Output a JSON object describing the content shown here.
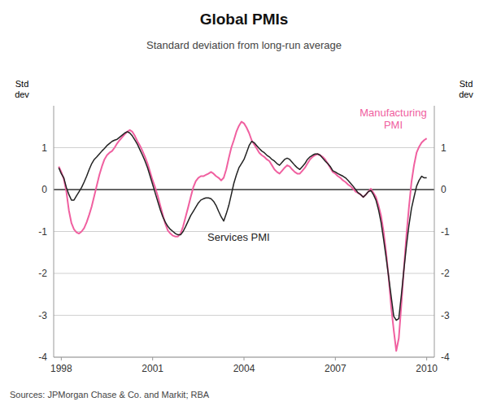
{
  "chart_data": {
    "type": "line",
    "title": "Global PMIs",
    "subtitle": "Standard deviation from long-run average",
    "ylabel": "Std\ndev",
    "y2label": "Std\ndev",
    "source": "Sources: JPMorgan Chase & Co. and Markit; RBA",
    "grid": true,
    "xlim": [
      1997.75,
      2010.25
    ],
    "xticks": [
      1998,
      2001,
      2004,
      2007,
      2010
    ],
    "ylim": [
      -4,
      2
    ],
    "yticks": [
      -4,
      -3,
      -2,
      -1,
      0,
      1
    ],
    "y2lim": [
      -4,
      2
    ],
    "y2ticks": [
      -4,
      -3,
      -2,
      -1,
      0,
      1
    ],
    "x": [
      1997.917,
      1998.0,
      1998.083,
      1998.167,
      1998.25,
      1998.333,
      1998.417,
      1998.5,
      1998.583,
      1998.667,
      1998.75,
      1998.833,
      1998.917,
      1999.0,
      1999.083,
      1999.167,
      1999.25,
      1999.333,
      1999.417,
      1999.5,
      1999.583,
      1999.667,
      1999.75,
      1999.833,
      1999.917,
      2000.0,
      2000.083,
      2000.167,
      2000.25,
      2000.333,
      2000.417,
      2000.5,
      2000.583,
      2000.667,
      2000.75,
      2000.833,
      2000.917,
      2001.0,
      2001.083,
      2001.167,
      2001.25,
      2001.333,
      2001.417,
      2001.5,
      2001.583,
      2001.667,
      2001.75,
      2001.833,
      2001.917,
      2002.0,
      2002.083,
      2002.167,
      2002.25,
      2002.333,
      2002.417,
      2002.5,
      2002.583,
      2002.667,
      2002.75,
      2002.833,
      2002.917,
      2003.0,
      2003.083,
      2003.167,
      2003.25,
      2003.333,
      2003.417,
      2003.5,
      2003.583,
      2003.667,
      2003.75,
      2003.833,
      2003.917,
      2004.0,
      2004.083,
      2004.167,
      2004.25,
      2004.333,
      2004.417,
      2004.5,
      2004.583,
      2004.667,
      2004.75,
      2004.833,
      2004.917,
      2005.0,
      2005.083,
      2005.167,
      2005.25,
      2005.333,
      2005.417,
      2005.5,
      2005.583,
      2005.667,
      2005.75,
      2005.833,
      2005.917,
      2006.0,
      2006.083,
      2006.167,
      2006.25,
      2006.333,
      2006.417,
      2006.5,
      2006.583,
      2006.667,
      2006.75,
      2006.833,
      2006.917,
      2007.0,
      2007.083,
      2007.167,
      2007.25,
      2007.333,
      2007.417,
      2007.5,
      2007.583,
      2007.667,
      2007.75,
      2007.833,
      2007.917,
      2008.0,
      2008.083,
      2008.167,
      2008.25,
      2008.333,
      2008.417,
      2008.5,
      2008.583,
      2008.667,
      2008.75,
      2008.833,
      2008.917,
      2009.0,
      2009.083,
      2009.167,
      2009.25,
      2009.333,
      2009.417,
      2009.5,
      2009.583,
      2009.667,
      2009.75,
      2009.833,
      2009.917,
      2010.0
    ],
    "series": [
      {
        "name": "Services PMI",
        "color": "#222222",
        "values": [
          0.52,
          0.38,
          0.28,
          0.05,
          -0.12,
          -0.25,
          -0.25,
          -0.15,
          -0.05,
          0.05,
          0.18,
          0.32,
          0.48,
          0.62,
          0.72,
          0.78,
          0.85,
          0.92,
          0.98,
          1.05,
          1.1,
          1.15,
          1.18,
          1.2,
          1.25,
          1.3,
          1.35,
          1.38,
          1.35,
          1.28,
          1.18,
          1.08,
          0.95,
          0.82,
          0.68,
          0.52,
          0.32,
          0.12,
          -0.08,
          -0.28,
          -0.48,
          -0.65,
          -0.78,
          -0.88,
          -0.95,
          -1.0,
          -1.05,
          -1.08,
          -1.08,
          -1.0,
          -0.88,
          -0.75,
          -0.62,
          -0.52,
          -0.42,
          -0.32,
          -0.25,
          -0.22,
          -0.2,
          -0.2,
          -0.22,
          -0.28,
          -0.38,
          -0.52,
          -0.65,
          -0.75,
          -0.58,
          -0.38,
          -0.12,
          0.15,
          0.35,
          0.52,
          0.62,
          0.72,
          0.88,
          1.05,
          1.15,
          1.12,
          1.05,
          0.98,
          0.92,
          0.88,
          0.82,
          0.78,
          0.72,
          0.68,
          0.62,
          0.58,
          0.65,
          0.72,
          0.75,
          0.72,
          0.65,
          0.58,
          0.52,
          0.48,
          0.55,
          0.62,
          0.72,
          0.78,
          0.82,
          0.85,
          0.85,
          0.82,
          0.75,
          0.68,
          0.62,
          0.55,
          0.45,
          0.42,
          0.38,
          0.35,
          0.32,
          0.28,
          0.22,
          0.15,
          0.08,
          0.0,
          -0.08,
          -0.12,
          -0.18,
          -0.12,
          -0.05,
          -0.02,
          -0.12,
          -0.25,
          -0.48,
          -0.78,
          -1.18,
          -1.62,
          -2.08,
          -2.55,
          -3.02,
          -3.12,
          -3.08,
          -2.52,
          -1.92,
          -1.35,
          -0.85,
          -0.45,
          -0.18,
          0.08,
          0.22,
          0.32,
          0.28,
          0.28
        ]
      },
      {
        "name": "Manufacturing\nPMI",
        "color": "#f060a0",
        "values": [
          0.55,
          0.42,
          0.25,
          -0.05,
          -0.5,
          -0.8,
          -0.95,
          -1.02,
          -1.05,
          -1.0,
          -0.92,
          -0.78,
          -0.6,
          -0.4,
          -0.15,
          0.1,
          0.35,
          0.55,
          0.72,
          0.82,
          0.88,
          0.92,
          1.0,
          1.1,
          1.18,
          1.25,
          1.32,
          1.38,
          1.42,
          1.38,
          1.28,
          1.15,
          1.05,
          0.92,
          0.78,
          0.62,
          0.42,
          0.22,
          0.05,
          -0.15,
          -0.38,
          -0.6,
          -0.82,
          -0.98,
          -1.05,
          -1.1,
          -1.12,
          -1.12,
          -1.05,
          -0.88,
          -0.65,
          -0.42,
          -0.18,
          0.05,
          0.2,
          0.28,
          0.32,
          0.32,
          0.35,
          0.38,
          0.42,
          0.38,
          0.32,
          0.28,
          0.22,
          0.28,
          0.48,
          0.75,
          1.0,
          1.18,
          1.38,
          1.52,
          1.62,
          1.58,
          1.48,
          1.35,
          1.18,
          1.08,
          0.98,
          0.88,
          0.82,
          0.78,
          0.72,
          0.68,
          0.58,
          0.48,
          0.42,
          0.38,
          0.45,
          0.52,
          0.58,
          0.55,
          0.48,
          0.42,
          0.38,
          0.38,
          0.45,
          0.52,
          0.62,
          0.72,
          0.78,
          0.82,
          0.85,
          0.82,
          0.78,
          0.72,
          0.62,
          0.52,
          0.42,
          0.38,
          0.32,
          0.28,
          0.22,
          0.18,
          0.12,
          0.08,
          0.02,
          -0.05,
          -0.08,
          -0.12,
          -0.18,
          -0.12,
          -0.05,
          0.02,
          -0.08,
          -0.18,
          -0.38,
          -0.62,
          -1.0,
          -1.5,
          -2.1,
          -2.8,
          -3.35,
          -3.85,
          -3.55,
          -2.75,
          -1.9,
          -1.1,
          -0.42,
          0.18,
          0.58,
          0.88,
          1.02,
          1.12,
          1.18,
          1.22
        ]
      }
    ]
  }
}
